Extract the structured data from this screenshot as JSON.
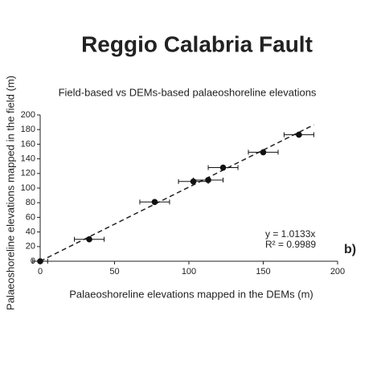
{
  "chart_data": {
    "type": "scatter",
    "title": "Reggio Calabria Fault",
    "subtitle": "Field-based vs DEMs-based palaeoshoreline elevations",
    "xlabel": "Palaeoshoreline elevations mapped in the DEMs (m)",
    "ylabel": "Palaeoshoreline elevations mapped in the field (m)",
    "panel_label": "b)",
    "x": [
      0,
      33,
      77,
      103,
      113,
      123,
      150,
      174
    ],
    "values": [
      0,
      30,
      81,
      109,
      111,
      128,
      149,
      173
    ],
    "xerr": [
      5,
      10,
      10,
      10,
      10,
      10,
      10,
      10
    ],
    "yerr": [
      4,
      4,
      4,
      4,
      4,
      4,
      4,
      4
    ],
    "color": "#111111",
    "trendline": {
      "slope": 1.0133,
      "equation": "y = 1.0133x",
      "r2": "R² = 0.9989"
    },
    "xlim": [
      0,
      200
    ],
    "ylim": [
      0,
      200
    ],
    "xticks": [
      0,
      50,
      100,
      150,
      200
    ],
    "yticks": [
      0,
      20,
      40,
      60,
      80,
      100,
      120,
      140,
      160,
      180,
      200
    ]
  }
}
